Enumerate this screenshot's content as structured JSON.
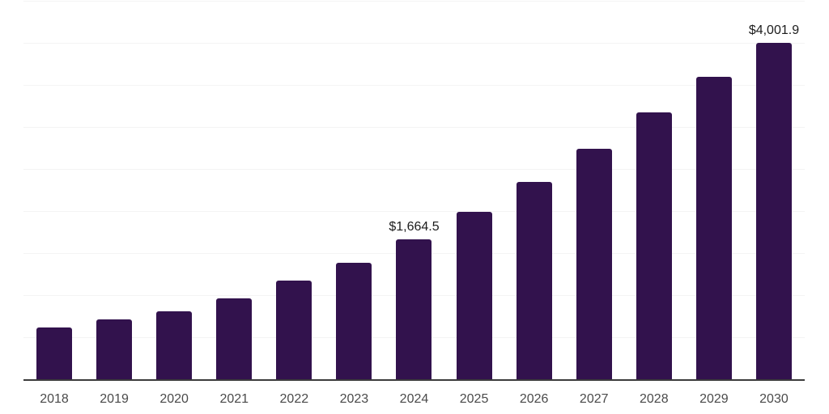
{
  "chart_data": {
    "type": "bar",
    "title": "",
    "xlabel": "",
    "ylabel": "",
    "categories": [
      "2018",
      "2019",
      "2020",
      "2021",
      "2022",
      "2023",
      "2024",
      "2025",
      "2026",
      "2027",
      "2028",
      "2029",
      "2030"
    ],
    "values": [
      615,
      720,
      815,
      970,
      1180,
      1385,
      1664.5,
      1995,
      2350,
      2745,
      3170,
      3600,
      4001.9
    ],
    "data_labels": [
      null,
      null,
      null,
      null,
      null,
      null,
      "$1,664.5",
      null,
      null,
      null,
      null,
      null,
      "$4,001.9"
    ],
    "ylim": [
      0,
      4500
    ],
    "gridline_step": 500,
    "grid": true,
    "legend_position": "none",
    "colors": {
      "bar": "#32124d",
      "gridline": "#f4f4f4",
      "axis_line": "#3c3c3c",
      "tick_label": "#4a4a4a",
      "data_label": "#1c1c1c",
      "background": "#ffffff"
    }
  }
}
